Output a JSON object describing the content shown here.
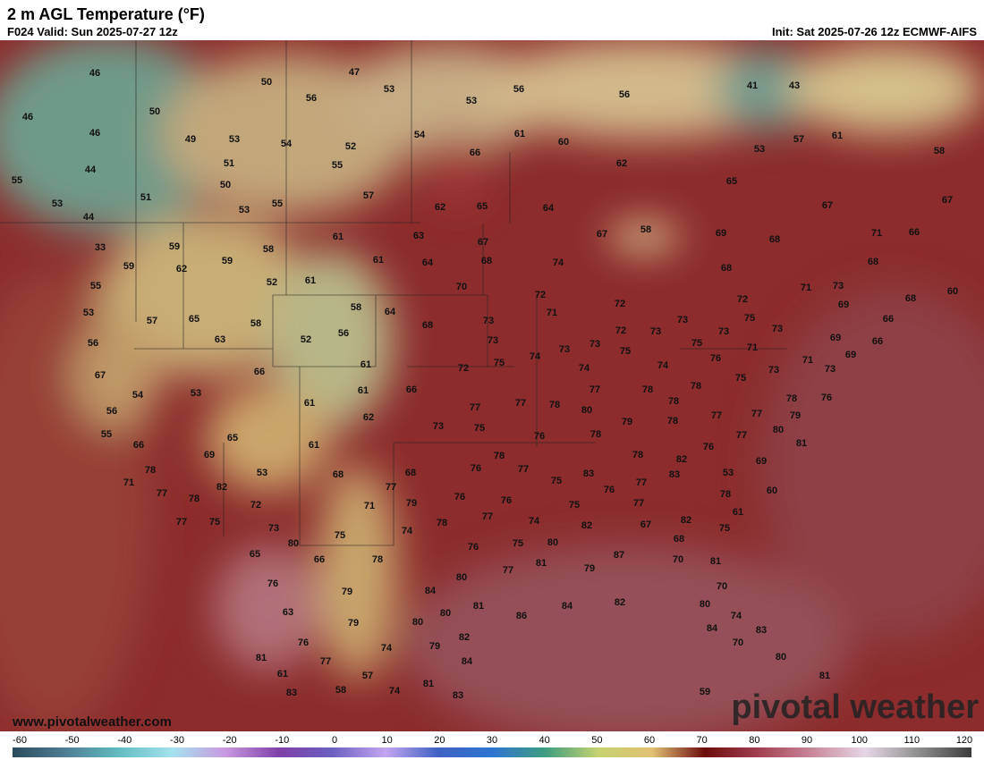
{
  "header": {
    "title": "2 m AGL Temperature (°F)",
    "valid": "F024 Valid: Sun 2025-07-27 12z",
    "init": "Init: Sat 2025-07-26 12z ECMWF-AIFS"
  },
  "map": {
    "values": [
      46,
      50,
      47,
      53,
      56,
      53,
      56,
      56,
      41,
      43,
      46,
      50,
      46,
      49,
      53,
      54,
      52,
      54,
      61,
      60,
      57,
      61,
      58,
      53,
      44,
      51,
      55,
      66,
      62,
      55,
      50,
      57,
      51,
      53,
      55,
      62,
      65,
      64,
      65,
      67,
      67,
      53,
      44,
      61,
      63,
      67,
      67,
      58,
      69,
      68,
      71,
      66,
      33,
      59,
      58,
      61,
      64,
      68,
      74,
      68,
      68,
      59,
      62,
      59,
      52,
      61,
      70,
      72,
      71,
      73,
      55,
      72,
      72,
      69,
      68,
      60,
      53,
      57,
      65,
      58,
      52,
      56,
      58,
      64,
      68,
      73,
      71,
      73,
      75,
      73,
      66,
      56,
      63,
      73,
      73,
      73,
      72,
      73,
      73,
      75,
      71,
      69,
      66,
      61,
      66,
      72,
      75,
      74,
      74,
      75,
      74,
      76,
      73,
      71,
      69,
      73,
      67,
      54,
      53,
      61,
      66,
      77,
      77,
      77,
      78,
      78,
      75,
      78,
      76,
      61,
      62,
      78,
      80,
      78,
      79,
      56,
      73,
      75,
      79,
      78,
      77,
      77,
      55,
      65,
      76,
      78,
      80,
      77,
      81,
      66,
      61,
      69,
      53,
      78,
      78,
      76,
      82,
      69,
      78,
      76,
      77,
      83,
      53,
      71,
      68,
      68,
      77,
      75,
      76,
      77,
      83,
      60,
      77,
      82,
      78,
      76,
      76,
      75,
      77,
      67,
      78,
      72,
      71,
      79,
      82,
      61,
      77,
      75,
      78,
      77,
      74,
      82,
      75,
      73,
      74,
      75,
      76,
      75,
      80,
      68,
      80,
      65,
      66,
      78,
      77,
      81,
      79,
      70,
      87,
      81,
      76,
      80,
      70,
      79,
      84,
      86,
      84,
      82,
      80,
      63,
      79,
      80,
      81,
      74,
      80,
      84,
      83,
      76,
      74,
      79,
      82,
      70,
      81,
      77,
      84,
      80,
      61,
      57,
      81,
      81,
      83,
      58,
      74,
      83,
      59
    ]
  },
  "footer": {
    "url": "www.pivotalweather.com",
    "brand": "pivotal weather"
  },
  "colorbar": {
    "ticks": [
      -60,
      -50,
      -40,
      -30,
      -20,
      -10,
      0,
      10,
      20,
      30,
      40,
      50,
      60,
      70,
      80,
      90,
      100,
      110,
      120
    ]
  }
}
